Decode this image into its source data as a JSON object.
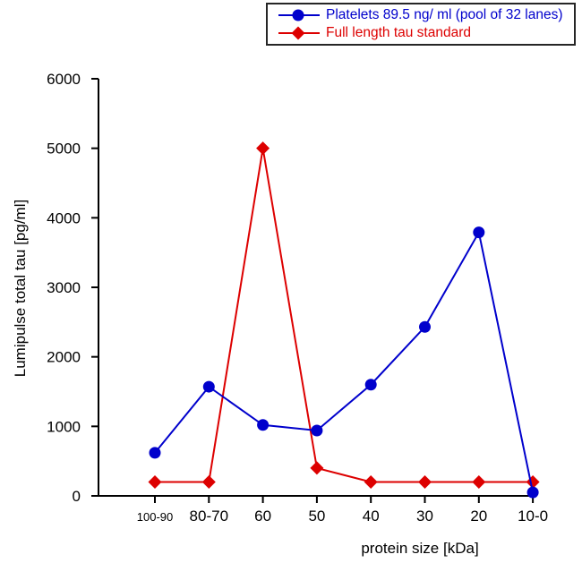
{
  "chart_data": {
    "type": "line",
    "title": "",
    "xlabel": "protein size [kDa]",
    "ylabel": "Lumipulse total tau [pg/ml]",
    "categories": [
      "100-90",
      "80-70",
      "60",
      "50",
      "40",
      "30",
      "20",
      "10-0"
    ],
    "yticks": [
      "0",
      "1000",
      "2000",
      "3000",
      "4000",
      "5000",
      "6000"
    ],
    "ylim": [
      0,
      6000
    ],
    "grid": false,
    "legend_position": "top-right",
    "axis_color": "#000000",
    "x_tick_small_indices": [
      0
    ],
    "series": [
      {
        "name": "Platelets 89.5 ng/ ml (pool of 32 lanes)",
        "color": "#0000CC",
        "marker": "circle",
        "values": [
          620,
          1570,
          1020,
          940,
          1600,
          2430,
          3790,
          50
        ]
      },
      {
        "name": "Full length tau standard",
        "color": "#DD0000",
        "marker": "diamond",
        "values": [
          200,
          200,
          5000,
          400,
          200,
          200,
          200,
          200
        ]
      }
    ]
  }
}
